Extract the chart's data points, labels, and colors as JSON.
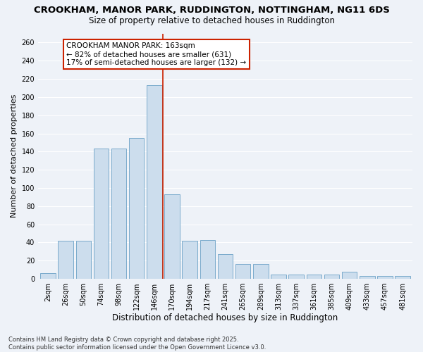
{
  "title": "CROOKHAM, MANOR PARK, RUDDINGTON, NOTTINGHAM, NG11 6DS",
  "subtitle": "Size of property relative to detached houses in Ruddington",
  "xlabel": "Distribution of detached houses by size in Ruddington",
  "ylabel": "Number of detached properties",
  "categories": [
    "2sqm",
    "26sqm",
    "50sqm",
    "74sqm",
    "98sqm",
    "122sqm",
    "146sqm",
    "170sqm",
    "194sqm",
    "217sqm",
    "241sqm",
    "265sqm",
    "289sqm",
    "313sqm",
    "337sqm",
    "361sqm",
    "385sqm",
    "409sqm",
    "433sqm",
    "457sqm",
    "481sqm"
  ],
  "values": [
    6,
    42,
    42,
    143,
    143,
    155,
    213,
    93,
    42,
    43,
    27,
    16,
    16,
    5,
    5,
    5,
    5,
    8,
    3,
    3,
    3
  ],
  "bar_color": "#ccdded",
  "bar_edge_color": "#7aabcc",
  "background_color": "#eef2f8",
  "grid_color": "#ffffff",
  "vline_color": "#cc2200",
  "vline_x_index": 6.5,
  "annotation_text": "CROOKHAM MANOR PARK: 163sqm\n← 82% of detached houses are smaller (631)\n17% of semi-detached houses are larger (132) →",
  "annotation_box_color": "#ffffff",
  "annotation_box_edge_color": "#cc2200",
  "ylim": [
    0,
    270
  ],
  "yticks": [
    0,
    20,
    40,
    60,
    80,
    100,
    120,
    140,
    160,
    180,
    200,
    220,
    240,
    260
  ],
  "footer": "Contains HM Land Registry data © Crown copyright and database right 2025.\nContains public sector information licensed under the Open Government Licence v3.0.",
  "title_fontsize": 9.5,
  "subtitle_fontsize": 8.5,
  "xlabel_fontsize": 8.5,
  "ylabel_fontsize": 8,
  "tick_fontsize": 7,
  "annotation_fontsize": 7.5,
  "footer_fontsize": 6
}
